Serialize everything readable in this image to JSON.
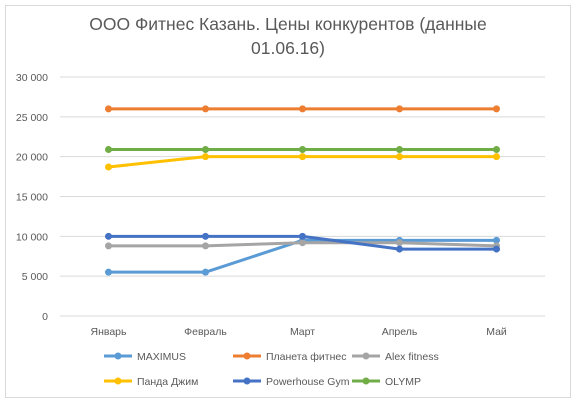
{
  "chart_data": {
    "type": "line",
    "title": "ООО Фитнес Казань.  Цены конкурентов (данные",
    "title_line2": "01.06.16)",
    "xlabel": "",
    "ylabel": "",
    "categories": [
      "Январь",
      "Февраль",
      "Март",
      "Апрель",
      "Май"
    ],
    "ylim": [
      0,
      30000
    ],
    "yticks": [
      0,
      5000,
      10000,
      15000,
      20000,
      25000,
      30000
    ],
    "ytick_labels": [
      "0",
      "5 000",
      "10 000",
      "15 000",
      "20 000",
      "25 000",
      "30 000"
    ],
    "grid": true,
    "legend_position": "bottom",
    "series": [
      {
        "name": "MAXIMUS",
        "color": "#5b9bd5",
        "values": [
          5500,
          5500,
          9500,
          9500,
          9500
        ]
      },
      {
        "name": "Планета фитнес",
        "color": "#ed7d31",
        "values": [
          26000,
          26000,
          26000,
          26000,
          26000
        ]
      },
      {
        "name": "Alex fitness",
        "color": "#a5a5a5",
        "values": [
          8800,
          8800,
          9200,
          9200,
          8800
        ]
      },
      {
        "name": "Панда Джим",
        "color": "#ffc000",
        "values": [
          18700,
          20000,
          20000,
          20000,
          20000
        ]
      },
      {
        "name": "Powerhouse Gym",
        "color": "#4472c4",
        "values": [
          10000,
          10000,
          10000,
          8400,
          8400
        ]
      },
      {
        "name": "OLYMP",
        "color": "#70ad47",
        "values": [
          20900,
          20900,
          20900,
          20900,
          20900
        ]
      }
    ]
  }
}
